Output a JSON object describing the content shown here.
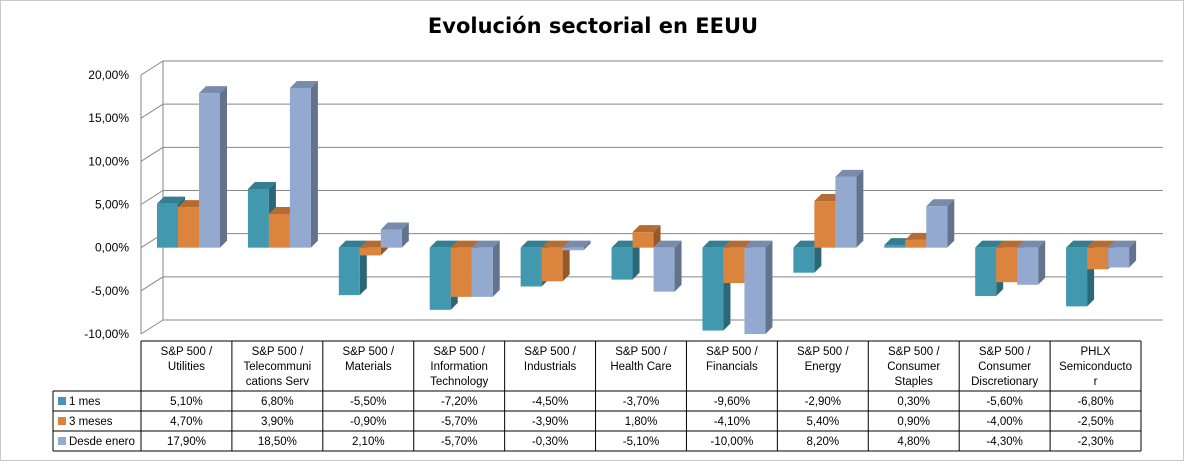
{
  "chart_data": {
    "type": "bar",
    "title": "Evolución sectorial en EEUU",
    "categories": [
      [
        "S&P 500 /",
        "Utilities"
      ],
      [
        "S&P 500 /",
        "Telecommuni",
        "cations Serv"
      ],
      [
        "S&P 500 /",
        "Materials"
      ],
      [
        "S&P 500 /",
        "Information",
        "Technology"
      ],
      [
        "S&P 500 /",
        "Industrials"
      ],
      [
        "S&P 500 /",
        "Health Care"
      ],
      [
        "S&P 500 /",
        "Financials"
      ],
      [
        "S&P 500 /",
        "Energy"
      ],
      [
        "S&P 500 /",
        "Consumer",
        "Staples"
      ],
      [
        "S&P 500 /",
        "Consumer",
        "Discretionary"
      ],
      [
        "PHLX",
        "Semiconducto",
        "r"
      ]
    ],
    "series": [
      {
        "name": "1 mes",
        "color": "#4198AF",
        "values": [
          5.1,
          6.8,
          -5.5,
          -7.2,
          -4.5,
          -3.7,
          -9.6,
          -2.9,
          0.3,
          -5.6,
          -6.8
        ],
        "labels": [
          "5,10%",
          "6,80%",
          "-5,50%",
          "-7,20%",
          "-4,50%",
          "-3,70%",
          "-9,60%",
          "-2,90%",
          "0,30%",
          "-5,60%",
          "-6,80%"
        ]
      },
      {
        "name": "3 meses",
        "color": "#DB843D",
        "values": [
          4.7,
          3.9,
          -0.9,
          -5.7,
          -3.9,
          1.8,
          -4.1,
          5.4,
          0.9,
          -4.0,
          -2.5
        ],
        "labels": [
          "4,70%",
          "3,90%",
          "-0,90%",
          "-5,70%",
          "-3,90%",
          "1,80%",
          "-4,10%",
          "5,40%",
          "0,90%",
          "-4,00%",
          "-2,50%"
        ]
      },
      {
        "name": "Desde enero",
        "color": "#93A9CF",
        "values": [
          17.9,
          18.5,
          2.1,
          -5.7,
          -0.3,
          -5.1,
          -10.0,
          8.2,
          4.8,
          -4.3,
          -2.3
        ],
        "labels": [
          "17,90%",
          "18,50%",
          "2,10%",
          "-5,70%",
          "-0,30%",
          "-5,10%",
          "-10,00%",
          "8,20%",
          "4,80%",
          "-4,30%",
          "-2,30%"
        ]
      }
    ],
    "yticks": [
      20,
      15,
      10,
      5,
      0,
      -5,
      -10
    ],
    "ytick_labels": [
      "20,00%",
      "15,00%",
      "10,00%",
      "5,00%",
      "0,00%",
      "-5,00%",
      "-10,00%"
    ],
    "ylim": [
      -10,
      20
    ],
    "grid": true,
    "legend": "data-table-left"
  }
}
